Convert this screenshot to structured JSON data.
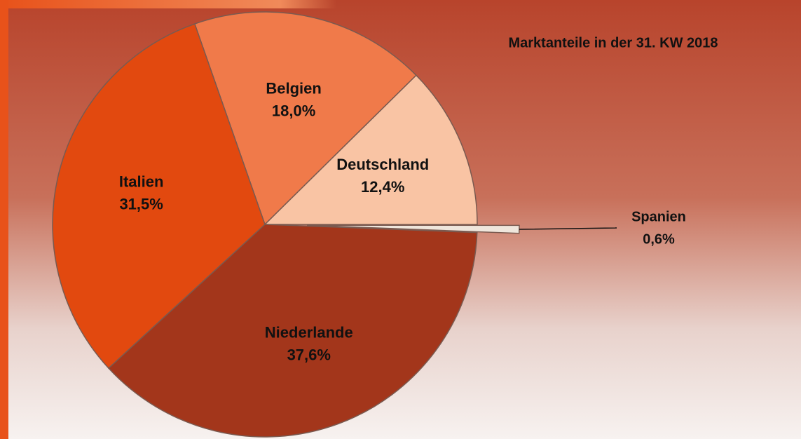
{
  "chart_data": {
    "type": "pie",
    "title": "Marktanteile in der 31. KW 2018",
    "categories": [
      "Belgien",
      "Deutschland",
      "Spanien",
      "Niederlande",
      "Italien"
    ],
    "values": [
      18.0,
      12.4,
      0.6,
      37.6,
      31.5
    ],
    "value_labels": [
      "18,0%",
      "12,4%",
      "0,6%",
      "37,6%",
      "31,5%"
    ],
    "colors": [
      "#f07a4a",
      "#f9c4a4",
      "#efe6dc",
      "#a3361b",
      "#e2490f"
    ],
    "explode": [
      false,
      false,
      true,
      false,
      false
    ]
  }
}
